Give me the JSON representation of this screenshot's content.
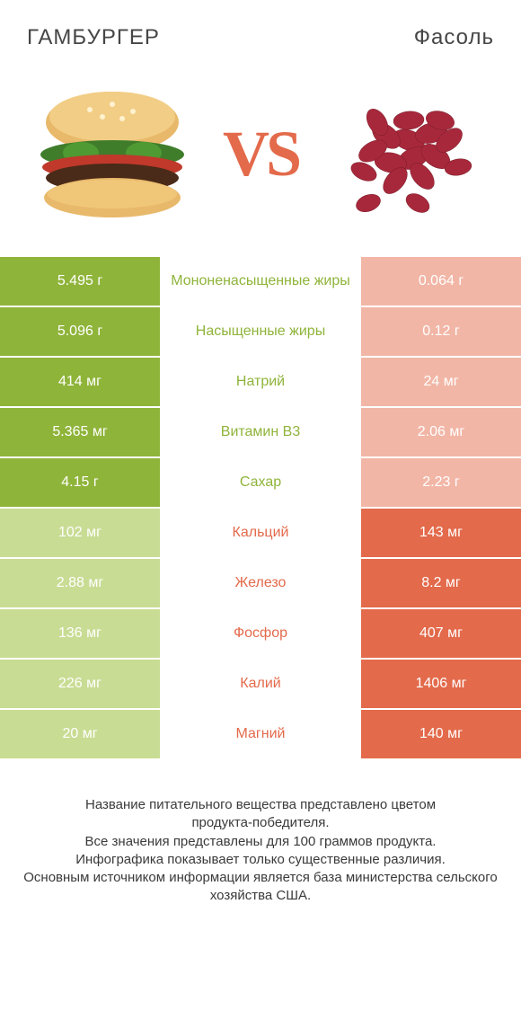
{
  "header": {
    "left_title": "ГАМБУРГЕР",
    "right_title": "Фасоль",
    "vs_label": "VS"
  },
  "colors": {
    "left_win_bg": "#8fb43a",
    "left_lose_bg": "#c9dc94",
    "right_win_bg": "#e36a4b",
    "right_lose_bg": "#f2b6a6",
    "mid_text_left": "#8fb43a",
    "mid_text_right": "#e36a4b",
    "title_text": "#464646",
    "footer_text": "#3a3a3a"
  },
  "rows": [
    {
      "left": "5.495 г",
      "mid": "Мононенасыщенные жиры",
      "right": "0.064 г",
      "winner": "left"
    },
    {
      "left": "5.096 г",
      "mid": "Насыщенные жиры",
      "right": "0.12 г",
      "winner": "left"
    },
    {
      "left": "414 мг",
      "mid": "Натрий",
      "right": "24 мг",
      "winner": "left"
    },
    {
      "left": "5.365 мг",
      "mid": "Витамин B3",
      "right": "2.06 мг",
      "winner": "left"
    },
    {
      "left": "4.15 г",
      "mid": "Сахар",
      "right": "2.23 г",
      "winner": "left"
    },
    {
      "left": "102 мг",
      "mid": "Кальций",
      "right": "143 мг",
      "winner": "right"
    },
    {
      "left": "2.88 мг",
      "mid": "Железо",
      "right": "8.2 мг",
      "winner": "right"
    },
    {
      "left": "136 мг",
      "mid": "Фосфор",
      "right": "407 мг",
      "winner": "right"
    },
    {
      "left": "226 мг",
      "mid": "Калий",
      "right": "1406 мг",
      "winner": "right"
    },
    {
      "left": "20 мг",
      "mid": "Магний",
      "right": "140 мг",
      "winner": "right"
    }
  ],
  "footer": {
    "line1": "Название питательного вещества представлено цветом продукта‑победителя.",
    "line2": "Все значения представлены для 100 граммов продукта.",
    "line3": "Инфографика показывает только существенные различия.",
    "line4": "Основным источником информации является база министерства сельского хозяйства США."
  }
}
